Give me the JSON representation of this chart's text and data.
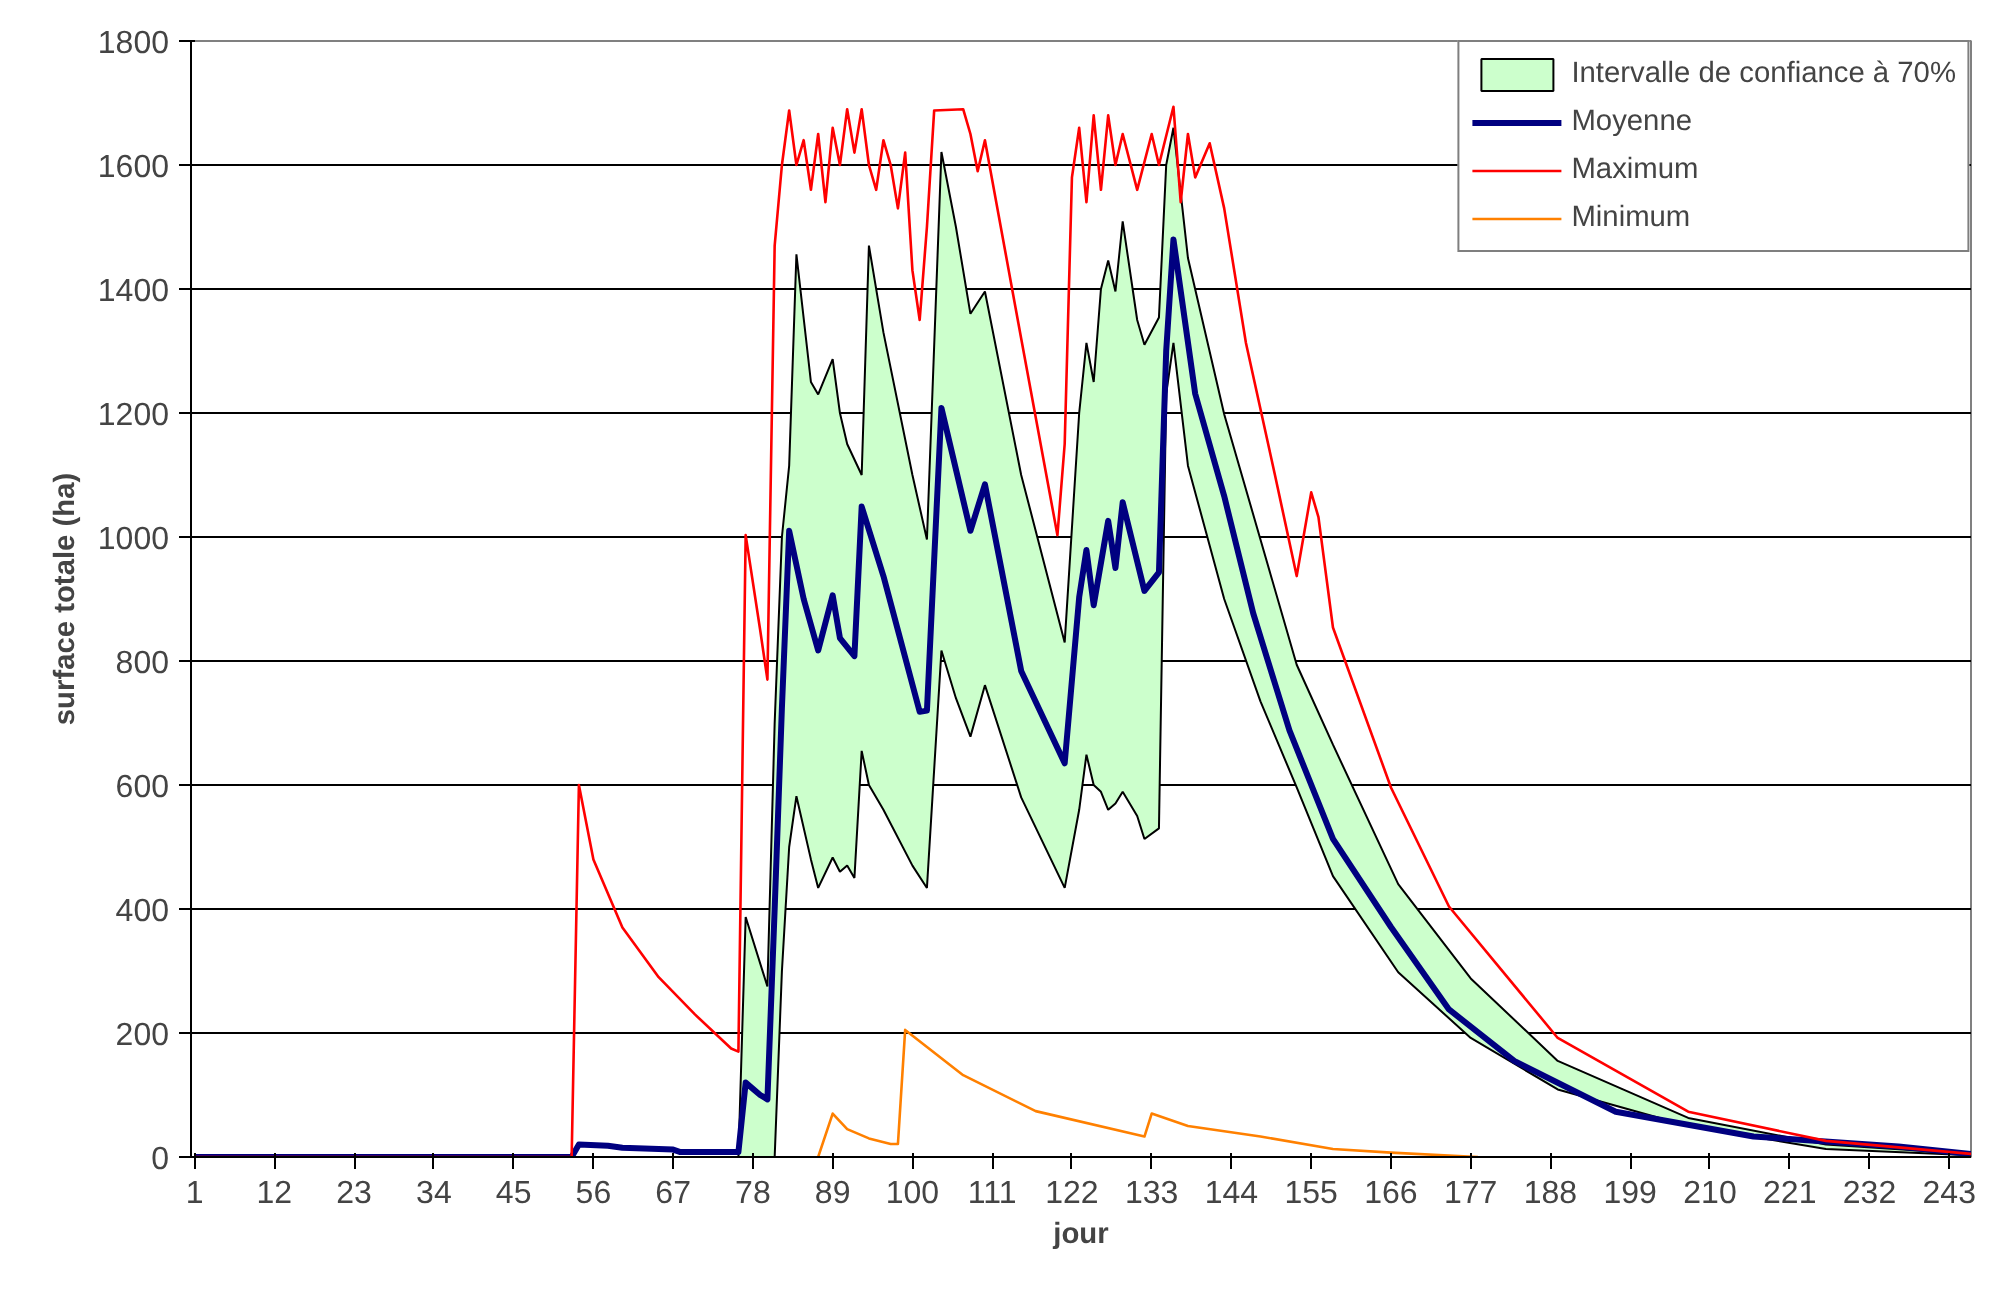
{
  "chart_data": {
    "type": "line",
    "xlabel": "jour",
    "ylabel": "surface totale (ha)",
    "xlim": [
      0.5,
      246
    ],
    "ylim": [
      0,
      1800
    ],
    "xticks": [
      1,
      12,
      23,
      34,
      45,
      56,
      67,
      78,
      89,
      100,
      111,
      122,
      133,
      144,
      155,
      166,
      177,
      188,
      199,
      210,
      221,
      232,
      243
    ],
    "yticks": [
      0,
      200,
      400,
      600,
      800,
      1000,
      1200,
      1400,
      1600,
      1800
    ],
    "grid": "y",
    "legend": "top right",
    "marker": "none",
    "line_style": "solid",
    "series": [
      {
        "name": "Intervalle de confiance à 70%",
        "type": "area",
        "color": "#ccffcc",
        "x": [
          76,
          77,
          80,
          81,
          82,
          83,
          84,
          86,
          87,
          89,
          90,
          91,
          92,
          93,
          94,
          96,
          100,
          102,
          104,
          106,
          108,
          110,
          115,
          121,
          123,
          124,
          125,
          126,
          127,
          128,
          129,
          131,
          132,
          134,
          135,
          136,
          138,
          143,
          148,
          153,
          158,
          167,
          177,
          189,
          207,
          226,
          246
        ],
        "values": [
          null,
          null,
          null,
          null,
          null,
          null,
          null,
          null,
          null,
          null,
          null,
          null,
          null,
          null,
          null,
          null,
          null,
          null,
          null,
          null,
          null,
          null,
          null,
          null,
          null,
          null,
          null,
          null,
          null,
          null,
          null,
          null,
          null,
          null,
          null,
          null,
          null,
          null,
          null,
          null,
          null,
          null,
          null,
          null,
          null,
          null,
          null
        ],
        "lower": [
          0,
          0,
          0,
          0,
          300,
          500,
          582,
          480,
          434,
          483,
          460,
          470,
          450,
          655,
          600,
          560,
          470,
          434,
          817,
          740,
          678,
          761,
          580,
          434,
          560,
          649,
          600,
          589,
          560,
          570,
          589,
          550,
          513,
          530,
          1231,
          1313,
          1115,
          900,
          735,
          596,
          453,
          298,
          192,
          109,
          50,
          13,
          3
        ],
        "upper": [
          0,
          387,
          275,
          700,
          1000,
          1115,
          1456,
          1250,
          1230,
          1287,
          1200,
          1150,
          1125,
          1100,
          1470,
          1330,
          1100,
          996,
          1621,
          1500,
          1360,
          1396,
          1100,
          830,
          1200,
          1313,
          1250,
          1400,
          1446,
          1396,
          1509,
          1350,
          1310,
          1354,
          1600,
          1660,
          1450,
          1198,
          996,
          794,
          665,
          440,
          288,
          155,
          63,
          20,
          5
        ]
      },
      {
        "name": "Moyenne",
        "color": "#000080",
        "x": [
          1,
          53,
          54,
          58,
          60,
          67,
          68,
          76,
          77,
          79,
          80,
          81,
          82,
          83,
          85,
          87,
          89,
          90,
          92,
          93,
          96,
          101,
          102,
          104,
          108,
          110,
          115,
          121,
          123,
          124,
          125,
          127,
          128,
          129,
          132,
          134,
          135,
          136,
          139,
          143,
          147,
          152,
          158,
          166,
          174,
          183,
          197,
          216,
          236,
          246
        ],
        "values": [
          0,
          0,
          20,
          18,
          15,
          12,
          8,
          8,
          120,
          100,
          93,
          400,
          725,
          1010,
          900,
          817,
          906,
          837,
          808,
          1049,
          937,
          718,
          720,
          1208,
          1010,
          1085,
          784,
          635,
          903,
          979,
          890,
          1026,
          950,
          1056,
          913,
          943,
          1300,
          1480,
          1231,
          1066,
          877,
          688,
          513,
          371,
          238,
          155,
          73,
          33,
          17,
          5
        ]
      },
      {
        "name": "Maximum",
        "color": "#ff0000",
        "x": [
          1,
          53,
          54,
          56,
          60,
          65,
          70,
          75,
          76,
          77,
          79,
          80,
          81,
          82,
          83,
          84,
          85,
          86,
          87,
          88,
          89,
          90,
          91,
          92,
          93,
          94,
          95,
          96,
          97,
          98,
          99,
          100,
          101,
          102,
          103,
          107,
          108,
          109,
          110,
          115,
          120,
          121,
          122,
          123,
          124,
          125,
          126,
          127,
          128,
          129,
          131,
          133,
          134,
          136,
          137,
          138,
          139,
          141,
          143,
          146,
          150,
          153,
          155,
          156,
          158,
          166,
          174,
          189,
          207,
          226,
          246
        ],
        "values": [
          0,
          0,
          600,
          480,
          370,
          290,
          230,
          175,
          170,
          1003,
          850,
          770,
          1470,
          1600,
          1688,
          1600,
          1640,
          1560,
          1650,
          1540,
          1660,
          1600,
          1690,
          1620,
          1690,
          1600,
          1560,
          1640,
          1600,
          1530,
          1620,
          1430,
          1350,
          1500,
          1688,
          1690,
          1650,
          1590,
          1640,
          1320,
          1003,
          1150,
          1580,
          1660,
          1540,
          1680,
          1560,
          1680,
          1600,
          1650,
          1560,
          1650,
          1600,
          1694,
          1540,
          1650,
          1580,
          1635,
          1530,
          1313,
          1100,
          937,
          1072,
          1032,
          854,
          596,
          404,
          192,
          73,
          26,
          5
        ]
      },
      {
        "name": "Minimum",
        "color": "#ff8000",
        "x": [
          87,
          89,
          91,
          94,
          97,
          98,
          99,
          107,
          117,
          132,
          133,
          138,
          148,
          158,
          166,
          178
        ],
        "values": [
          0,
          70,
          45,
          30,
          21,
          21,
          205,
          132,
          74,
          33,
          70,
          50,
          33,
          13,
          7,
          0
        ]
      }
    ]
  }
}
